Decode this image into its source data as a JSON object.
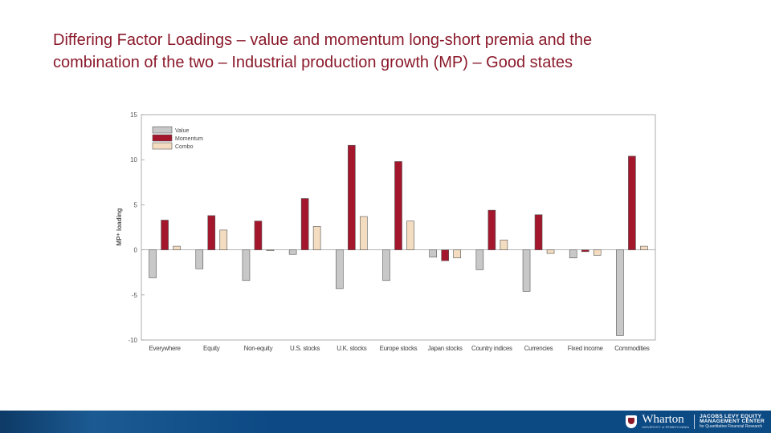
{
  "title": {
    "line1": "Differing Factor Loadings – value and momentum long-short premia and the",
    "line2": "combination of the two – Industrial production growth (MP) – Good states"
  },
  "chart_data": {
    "type": "bar",
    "title": "",
    "xlabel": "",
    "ylabel": "MP⁺ loading",
    "ylim": [
      -10,
      15
    ],
    "yticks": [
      15,
      10,
      5,
      0,
      -5,
      -10
    ],
    "legend_position": "top-left",
    "categories": [
      "Everywhere",
      "Equity",
      "Non-equity",
      "U.S. stocks",
      "U.K. stocks",
      "Europe stocks",
      "Japan stocks",
      "Country indices",
      "Currencies",
      "Fixed income",
      "Commodities"
    ],
    "series": [
      {
        "name": "Value",
        "color": "#c8c8c8",
        "values": [
          -3.1,
          -2.1,
          -3.4,
          -0.5,
          -4.3,
          -3.4,
          -0.8,
          -2.2,
          -4.6,
          -0.9,
          -9.5
        ]
      },
      {
        "name": "Momentum",
        "color": "#a3162c",
        "values": [
          3.3,
          3.8,
          3.2,
          5.7,
          11.6,
          9.8,
          -1.2,
          4.4,
          3.9,
          -0.2,
          10.4
        ]
      },
      {
        "name": "Combo",
        "color": "#f3dcc0",
        "values": [
          0.4,
          2.2,
          -0.1,
          2.6,
          3.7,
          3.2,
          -0.9,
          1.1,
          -0.4,
          -0.6,
          0.4
        ]
      }
    ]
  },
  "footer": {
    "brand": "Wharton",
    "brand_sub": "UNIVERSITY of PENNSYLVANIA",
    "center_line1": "JACOBS LEVY EQUITY",
    "center_line2": "MANAGEMENT CENTER",
    "center_line3": "for Quantitative Financial Research"
  }
}
